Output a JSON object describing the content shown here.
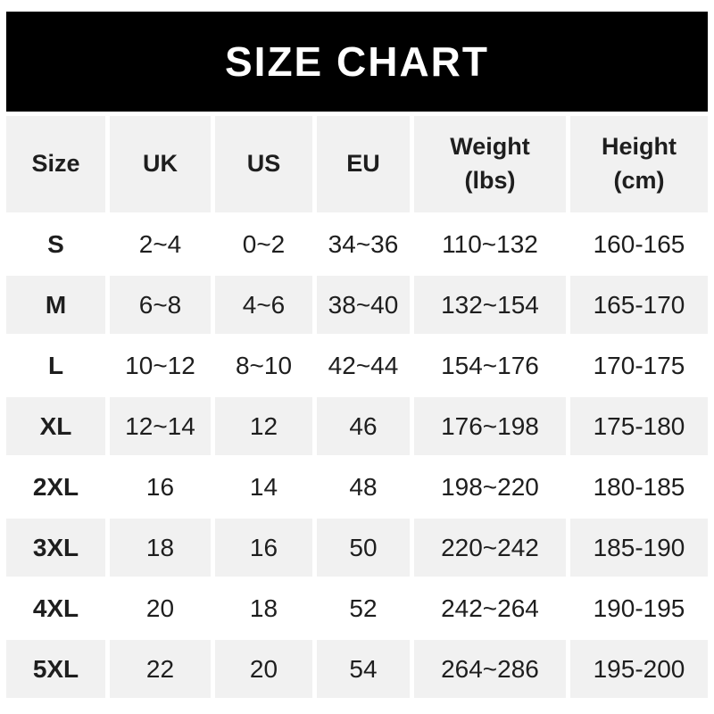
{
  "banner": {
    "title": "SIZE CHART"
  },
  "colors": {
    "banner_bg": "#000000",
    "banner_text": "#ffffff",
    "cell_gray": "#f1f1f1",
    "cell_white": "#ffffff",
    "text": "#1e1e1e"
  },
  "table": {
    "headers": [
      "Size",
      "UK",
      "US",
      "EU",
      "Weight\n(lbs)",
      "Height\n(cm)"
    ],
    "rows": [
      {
        "size": "S",
        "uk": "2~4",
        "us": "0~2",
        "eu": "34~36",
        "weight": "110~132",
        "height": "160-165"
      },
      {
        "size": "M",
        "uk": "6~8",
        "us": "4~6",
        "eu": "38~40",
        "weight": "132~154",
        "height": "165-170"
      },
      {
        "size": "L",
        "uk": "10~12",
        "us": "8~10",
        "eu": "42~44",
        "weight": "154~176",
        "height": "170-175"
      },
      {
        "size": "XL",
        "uk": "12~14",
        "us": "12",
        "eu": "46",
        "weight": "176~198",
        "height": "175-180"
      },
      {
        "size": "2XL",
        "uk": "16",
        "us": "14",
        "eu": "48",
        "weight": "198~220",
        "height": "180-185"
      },
      {
        "size": "3XL",
        "uk": "18",
        "us": "16",
        "eu": "50",
        "weight": "220~242",
        "height": "185-190"
      },
      {
        "size": "4XL",
        "uk": "20",
        "us": "18",
        "eu": "52",
        "weight": "242~264",
        "height": "190-195"
      },
      {
        "size": "5XL",
        "uk": "22",
        "us": "20",
        "eu": "54",
        "weight": "264~286",
        "height": "195-200"
      }
    ]
  },
  "chart_data": {
    "type": "table",
    "title": "SIZE CHART",
    "columns": [
      "Size",
      "UK",
      "US",
      "EU",
      "Weight (lbs)",
      "Height (cm)"
    ],
    "rows": [
      [
        "S",
        "2~4",
        "0~2",
        "34~36",
        "110~132",
        "160-165"
      ],
      [
        "M",
        "6~8",
        "4~6",
        "38~40",
        "132~154",
        "165-170"
      ],
      [
        "L",
        "10~12",
        "8~10",
        "42~44",
        "154~176",
        "170-175"
      ],
      [
        "XL",
        "12~14",
        "12",
        "46",
        "176~198",
        "175-180"
      ],
      [
        "2XL",
        "16",
        "14",
        "48",
        "198~220",
        "180-185"
      ],
      [
        "3XL",
        "18",
        "16",
        "50",
        "220~242",
        "185-190"
      ],
      [
        "4XL",
        "20",
        "18",
        "52",
        "242~264",
        "190-195"
      ],
      [
        "5XL",
        "22",
        "20",
        "54",
        "264~286",
        "195-200"
      ]
    ],
    "layout": {
      "header_background": "#f1f1f1",
      "alternating_row_backgrounds": [
        "#ffffff",
        "#f1f1f1"
      ],
      "gridlines": "white gutters between cells",
      "banner": {
        "text": "SIZE CHART",
        "background": "#000000",
        "text_color": "#ffffff"
      }
    }
  }
}
